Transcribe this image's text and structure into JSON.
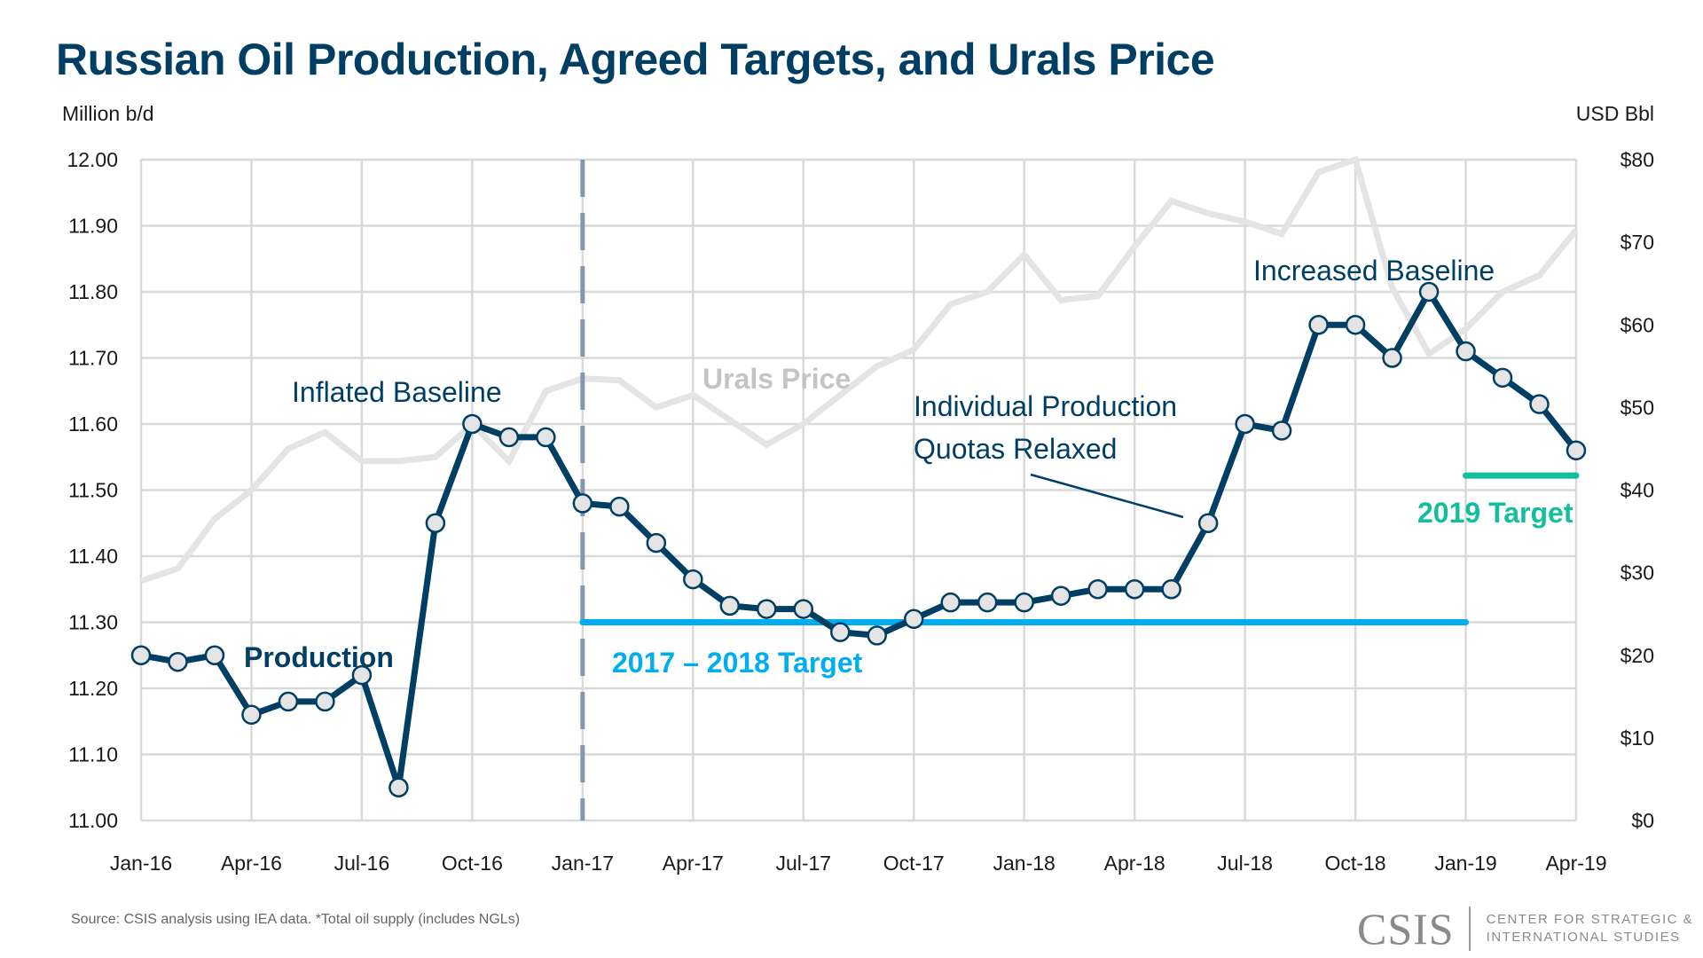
{
  "title": "Russian Oil Production, Agreed Targets, and Urals Price",
  "left_axis_unit": "Million b/d",
  "right_axis_unit": "USD Bbl",
  "source": "Source: CSIS analysis using IEA data. *Total oil supply (includes NGLs)",
  "logo": {
    "mark": "CSIS",
    "line1": "CENTER FOR STRATEGIC &",
    "line2": "INTERNATIONAL STUDIES"
  },
  "colors": {
    "title": "#003f63",
    "production": "#003f63",
    "marker_fill": "#e4e4e4",
    "urals": "#e4e4e4",
    "urals_label": "#c4c4c4",
    "target_2017_2018": "#00aef0",
    "target_2019": "#13bf9b",
    "divider_dashed": "#8496b0",
    "grid": "#d9d9d9",
    "annotation": "#003f63"
  },
  "chart_data": {
    "type": "line",
    "title": "Russian Oil Production, Agreed Targets, and Urals Price",
    "x": [
      "Jan-16",
      "Feb-16",
      "Mar-16",
      "Apr-16",
      "May-16",
      "Jun-16",
      "Jul-16",
      "Aug-16",
      "Sep-16",
      "Oct-16",
      "Nov-16",
      "Dec-16",
      "Jan-17",
      "Feb-17",
      "Mar-17",
      "Apr-17",
      "May-17",
      "Jun-17",
      "Jul-17",
      "Aug-17",
      "Sep-17",
      "Oct-17",
      "Nov-17",
      "Dec-17",
      "Jan-18",
      "Feb-18",
      "Mar-18",
      "Apr-18",
      "May-18",
      "Jun-18",
      "Jul-18",
      "Aug-18",
      "Sep-18",
      "Oct-18",
      "Nov-18",
      "Dec-18",
      "Jan-19",
      "Feb-19",
      "Mar-19",
      "Apr-19"
    ],
    "x_tick_labels": [
      "Jan-16",
      "Apr-16",
      "Jul-16",
      "Oct-16",
      "Jan-17",
      "Apr-17",
      "Jul-17",
      "Oct-17",
      "Jan-18",
      "Apr-18",
      "Jul-18",
      "Oct-18",
      "Jan-19",
      "Apr-19"
    ],
    "series": [
      {
        "name": "Production",
        "axis": "left",
        "values": [
          11.25,
          11.24,
          11.25,
          11.16,
          11.18,
          11.18,
          11.22,
          11.05,
          11.45,
          11.6,
          11.58,
          11.58,
          11.48,
          11.475,
          11.42,
          11.365,
          11.325,
          11.32,
          11.32,
          11.285,
          11.28,
          11.305,
          11.33,
          11.33,
          11.33,
          11.34,
          11.35,
          11.35,
          11.35,
          11.45,
          11.6,
          11.59,
          11.75,
          11.75,
          11.7,
          11.8,
          11.71,
          11.67,
          11.63,
          11.56
        ]
      },
      {
        "name": "Urals Price",
        "axis": "right",
        "values": [
          29,
          30.5,
          36.5,
          40,
          45,
          47,
          43.5,
          43.5,
          44,
          48,
          43.5,
          52,
          53.5,
          53.3,
          50,
          51.5,
          48.5,
          45.5,
          48,
          51.5,
          55,
          57,
          62.5,
          64,
          68.5,
          63,
          63.5,
          69.5,
          75,
          73.5,
          72.5,
          71,
          78.5,
          80,
          64.5,
          56.5,
          59.5,
          64,
          66,
          71.5
        ]
      }
    ],
    "targets": [
      {
        "name": "2017 – 2018 Target",
        "value": 11.3,
        "from": "Jan-17",
        "to": "Jan-19"
      },
      {
        "name": "2019 Target",
        "value": 11.522,
        "from": "Jan-19",
        "to": "Apr-19"
      }
    ],
    "divider": {
      "at": "Jan-17",
      "style": "dashed"
    },
    "annotations": [
      {
        "text": "Production",
        "bold": true
      },
      {
        "text": "Inflated Baseline"
      },
      {
        "text": "Urals Price",
        "bold": true
      },
      {
        "text": "Individual Production",
        "line2": "Quotas Relaxed",
        "pointer_to": "Jun-18"
      },
      {
        "text": "Increased Baseline"
      }
    ],
    "left_axis": {
      "label": "Million b/d",
      "ylim": [
        11.0,
        12.0
      ],
      "ticks": [
        "11.00",
        "11.10",
        "11.20",
        "11.30",
        "11.40",
        "11.50",
        "11.60",
        "11.70",
        "11.80",
        "11.90",
        "12.00"
      ]
    },
    "right_axis": {
      "label": "USD Bbl",
      "ylim": [
        0,
        80
      ],
      "ticks": [
        "$0",
        "$10",
        "$20",
        "$30",
        "$40",
        "$50",
        "$60",
        "$70",
        "$80"
      ]
    },
    "grid": true,
    "legend": "none"
  }
}
